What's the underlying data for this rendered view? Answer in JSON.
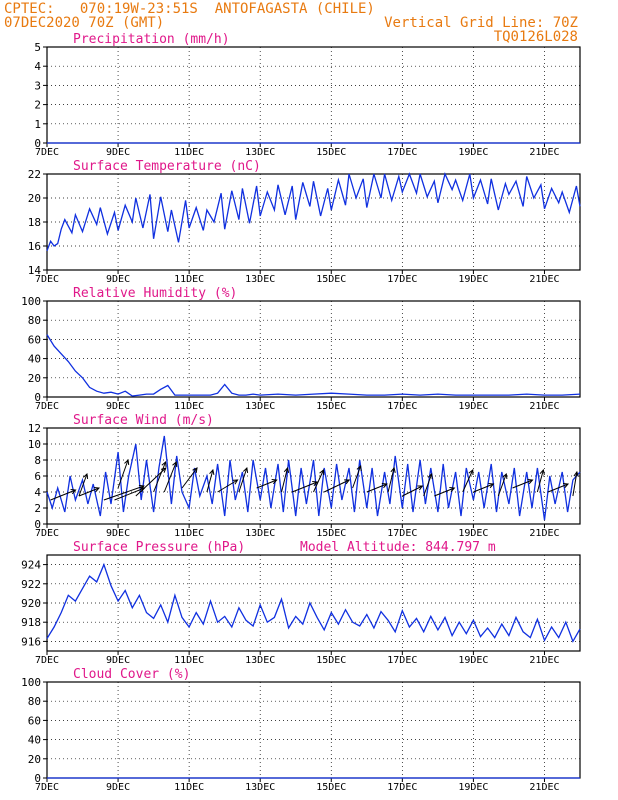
{
  "header": {
    "line1": "CPTEC:   070:19W-23:51S  ANTOFAGASTA (CHILE)",
    "line2": "07DEC2020 70Z (GMT)",
    "grid_note": "Vertical Grid Line: 70Z",
    "code": "TQ0126L028"
  },
  "colors": {
    "header": "#e87a10",
    "title": "#e0188a",
    "series": "#1030e0",
    "axis": "#000000"
  },
  "chart_data": [
    {
      "type": "line",
      "title": "Precipitation (mm/h)",
      "ylim": [
        0,
        5
      ],
      "yticks": [
        0,
        1,
        2,
        3,
        4,
        5
      ],
      "xticks": [
        "7DEC",
        "9DEC",
        "11DEC",
        "13DEC",
        "15DEC",
        "17DEC",
        "19DEC",
        "21DEC"
      ],
      "xlim_days": [
        7,
        22
      ],
      "series": [
        {
          "x": [
            7,
            22
          ],
          "y": [
            0,
            0
          ]
        }
      ]
    },
    {
      "type": "line",
      "title": "Surface Temperature (nC)",
      "ylim": [
        14,
        22
      ],
      "yticks": [
        14,
        16,
        18,
        20,
        22
      ],
      "xticks": [
        "7DEC",
        "9DEC",
        "11DEC",
        "13DEC",
        "15DEC",
        "17DEC",
        "19DEC",
        "21DEC"
      ],
      "xlim_days": [
        7,
        22
      ],
      "series": [
        {
          "x": [
            7.0,
            7.1,
            7.2,
            7.3,
            7.4,
            7.5,
            7.7,
            7.8,
            8.0,
            8.2,
            8.4,
            8.5,
            8.7,
            8.9,
            9.0,
            9.2,
            9.4,
            9.5,
            9.7,
            9.9,
            10.0,
            10.2,
            10.4,
            10.5,
            10.7,
            10.9,
            11.0,
            11.2,
            11.4,
            11.5,
            11.7,
            11.9,
            12.0,
            12.2,
            12.4,
            12.5,
            12.7,
            12.9,
            13.0,
            13.2,
            13.4,
            13.5,
            13.7,
            13.9,
            14.0,
            14.2,
            14.4,
            14.5,
            14.7,
            14.9,
            15.0,
            15.2,
            15.4,
            15.5,
            15.7,
            15.9,
            16.0,
            16.2,
            16.4,
            16.5,
            16.7,
            16.9,
            17.0,
            17.2,
            17.4,
            17.5,
            17.7,
            17.9,
            18.0,
            18.2,
            18.4,
            18.5,
            18.7,
            18.9,
            19.0,
            19.2,
            19.4,
            19.5,
            19.7,
            19.9,
            20.0,
            20.2,
            20.4,
            20.5,
            20.7,
            20.9,
            21.0,
            21.2,
            21.4,
            21.5,
            21.7,
            21.9,
            22.0
          ],
          "y": [
            15.6,
            16.4,
            16.0,
            16.2,
            17.4,
            18.2,
            17.1,
            18.6,
            17.2,
            19.1,
            17.8,
            19.2,
            17.0,
            18.8,
            17.3,
            19.4,
            18.0,
            20.0,
            17.5,
            20.3,
            16.6,
            20.1,
            17.2,
            19.0,
            16.3,
            19.8,
            17.5,
            19.2,
            17.3,
            19.0,
            18.0,
            20.4,
            17.4,
            20.6,
            18.2,
            20.8,
            17.9,
            21.0,
            18.5,
            20.5,
            19.0,
            21.1,
            18.6,
            21.0,
            18.2,
            21.3,
            19.3,
            21.4,
            18.5,
            20.8,
            19.0,
            21.5,
            19.4,
            22.0,
            20.0,
            21.6,
            19.2,
            22.0,
            20.0,
            22.0,
            19.8,
            21.8,
            20.5,
            22.0,
            20.4,
            22.0,
            20.1,
            21.4,
            19.6,
            22.0,
            20.7,
            21.5,
            19.8,
            22.0,
            20.0,
            21.5,
            19.5,
            21.6,
            19.0,
            21.2,
            20.3,
            21.4,
            19.3,
            21.8,
            20.0,
            21.1,
            19.1,
            20.8,
            19.6,
            20.5,
            18.8,
            21.0,
            19.3
          ]
        }
      ]
    },
    {
      "type": "line",
      "title": "Relative Humidity (%)",
      "ylim": [
        0,
        100
      ],
      "yticks": [
        0,
        20,
        40,
        60,
        80,
        100
      ],
      "xticks": [
        "7DEC",
        "9DEC",
        "11DEC",
        "13DEC",
        "15DEC",
        "17DEC",
        "19DEC",
        "21DEC"
      ],
      "xlim_days": [
        7,
        22
      ],
      "series": [
        {
          "x": [
            7.0,
            7.2,
            7.4,
            7.6,
            7.8,
            8.0,
            8.2,
            8.4,
            8.6,
            8.8,
            9.0,
            9.2,
            9.4,
            9.6,
            9.8,
            10.0,
            10.2,
            10.4,
            10.6,
            10.8,
            11.0,
            11.2,
            11.4,
            11.6,
            11.8,
            12.0,
            12.2,
            12.4,
            12.6,
            12.8,
            13.0,
            13.5,
            14.0,
            14.5,
            15.0,
            15.5,
            16.0,
            16.5,
            17.0,
            17.5,
            18.0,
            18.5,
            19.0,
            19.5,
            20.0,
            20.5,
            21.0,
            21.5,
            22.0
          ],
          "y": [
            65,
            53,
            45,
            37,
            27,
            20,
            10,
            6,
            4,
            5,
            3,
            6,
            1,
            2,
            3,
            3,
            8,
            12,
            2,
            2,
            2,
            2,
            2,
            2,
            4,
            13,
            4,
            2,
            2,
            3,
            2,
            3,
            2,
            3,
            4,
            3,
            2,
            2,
            3,
            2,
            3,
            2,
            2,
            2,
            2,
            3,
            2,
            2,
            3
          ]
        }
      ]
    },
    {
      "type": "line",
      "title": "Surface Wind (m/s)",
      "ylim": [
        0,
        12
      ],
      "yticks": [
        0,
        2,
        4,
        6,
        8,
        10,
        12
      ],
      "xticks": [
        "7DEC",
        "9DEC",
        "11DEC",
        "13DEC",
        "15DEC",
        "17DEC",
        "19DEC",
        "21DEC"
      ],
      "xlim_days": [
        7,
        22
      ],
      "series": [
        {
          "x": [
            7.0,
            7.15,
            7.3,
            7.5,
            7.65,
            7.8,
            8.0,
            8.15,
            8.3,
            8.5,
            8.65,
            8.8,
            9.0,
            9.15,
            9.3,
            9.5,
            9.65,
            9.8,
            10.0,
            10.15,
            10.3,
            10.5,
            10.65,
            10.8,
            11.0,
            11.15,
            11.3,
            11.5,
            11.65,
            11.8,
            12.0,
            12.15,
            12.3,
            12.5,
            12.65,
            12.8,
            13.0,
            13.15,
            13.3,
            13.5,
            13.65,
            13.8,
            14.0,
            14.15,
            14.3,
            14.5,
            14.65,
            14.8,
            15.0,
            15.15,
            15.3,
            15.5,
            15.65,
            15.8,
            16.0,
            16.15,
            16.3,
            16.5,
            16.65,
            16.8,
            17.0,
            17.15,
            17.3,
            17.5,
            17.65,
            17.8,
            18.0,
            18.15,
            18.3,
            18.5,
            18.65,
            18.8,
            19.0,
            19.15,
            19.3,
            19.5,
            19.65,
            19.8,
            20.0,
            20.15,
            20.3,
            20.5,
            20.65,
            20.8,
            21.0,
            21.15,
            21.3,
            21.5,
            21.65,
            21.8,
            22.0
          ],
          "y": [
            4.0,
            2.0,
            4.5,
            1.5,
            6.0,
            3.0,
            5.5,
            2.5,
            5.0,
            1.0,
            6.5,
            2.5,
            9.0,
            1.5,
            6.0,
            10.0,
            3.0,
            8.0,
            1.5,
            7.0,
            11.0,
            2.5,
            8.5,
            4.0,
            2.0,
            7.0,
            3.5,
            6.0,
            2.5,
            7.5,
            1.0,
            8.0,
            3.0,
            6.5,
            1.5,
            8.0,
            3.0,
            7.0,
            2.0,
            7.5,
            1.5,
            8.0,
            1.0,
            7.0,
            2.5,
            8.0,
            1.0,
            7.0,
            2.0,
            7.5,
            3.0,
            7.0,
            1.5,
            8.0,
            2.0,
            7.0,
            1.0,
            6.5,
            2.5,
            8.5,
            2.0,
            7.5,
            1.5,
            8.0,
            2.5,
            7.0,
            1.5,
            7.5,
            2.0,
            6.5,
            1.0,
            7.0,
            3.0,
            6.5,
            2.0,
            7.5,
            1.5,
            6.5,
            2.5,
            7.0,
            1.0,
            6.5,
            2.0,
            7.0,
            0.5,
            6.0,
            2.5,
            6.5,
            1.5,
            5.5,
            6.5
          ]
        }
      ],
      "wind_barbs": [
        {
          "x": 7.1,
          "dx": 25,
          "dy": -10
        },
        {
          "x": 7.9,
          "dx": 8,
          "dy": -22
        },
        {
          "x": 7.9,
          "dx": 20,
          "dy": -8
        },
        {
          "x": 8.6,
          "dx": 40,
          "dy": -14
        },
        {
          "x": 9.0,
          "dx": 10,
          "dy": -28
        },
        {
          "x": 8.9,
          "dx": 30,
          "dy": -12
        },
        {
          "x": 9.5,
          "dx": 30,
          "dy": -28
        },
        {
          "x": 10.0,
          "dx": 12,
          "dy": -30
        },
        {
          "x": 10.3,
          "dx": 12,
          "dy": -30
        },
        {
          "x": 10.8,
          "dx": 15,
          "dy": -20
        },
        {
          "x": 11.5,
          "dx": 6,
          "dy": -22
        },
        {
          "x": 11.8,
          "dx": 20,
          "dy": -12
        },
        {
          "x": 12.4,
          "dx": 8,
          "dy": -24
        },
        {
          "x": 12.9,
          "dx": 20,
          "dy": -8
        },
        {
          "x": 13.6,
          "dx": 6,
          "dy": -24
        },
        {
          "x": 13.9,
          "dx": 25,
          "dy": -10
        },
        {
          "x": 14.5,
          "dx": 10,
          "dy": -22
        },
        {
          "x": 14.8,
          "dx": 25,
          "dy": -12
        },
        {
          "x": 15.6,
          "dx": 8,
          "dy": -22
        },
        {
          "x": 16.0,
          "dx": 20,
          "dy": -8
        },
        {
          "x": 16.6,
          "dx": 6,
          "dy": -24
        },
        {
          "x": 17.0,
          "dx": 20,
          "dy": -10
        },
        {
          "x": 17.6,
          "dx": 8,
          "dy": -22
        },
        {
          "x": 17.9,
          "dx": 20,
          "dy": -8
        },
        {
          "x": 18.7,
          "dx": 10,
          "dy": -22
        },
        {
          "x": 19.0,
          "dx": 20,
          "dy": -8
        },
        {
          "x": 19.7,
          "dx": 8,
          "dy": -22
        },
        {
          "x": 20.1,
          "dx": 20,
          "dy": -8
        },
        {
          "x": 20.8,
          "dx": 6,
          "dy": -22
        },
        {
          "x": 21.1,
          "dx": 20,
          "dy": -8
        },
        {
          "x": 21.8,
          "dx": 4,
          "dy": -24
        }
      ]
    },
    {
      "type": "line",
      "title": "Surface Pressure (hPa)",
      "annotation": "Model Altitude: 844.797 m",
      "ylim": [
        915,
        925
      ],
      "yticks": [
        916,
        918,
        920,
        922,
        924
      ],
      "xticks": [
        "7DEC",
        "9DEC",
        "11DEC",
        "13DEC",
        "15DEC",
        "17DEC",
        "19DEC",
        "21DEC"
      ],
      "xlim_days": [
        7,
        22
      ],
      "series": [
        {
          "x": [
            7.0,
            7.2,
            7.4,
            7.6,
            7.8,
            8.0,
            8.2,
            8.4,
            8.6,
            8.8,
            9.0,
            9.2,
            9.4,
            9.6,
            9.8,
            10.0,
            10.2,
            10.4,
            10.6,
            10.8,
            11.0,
            11.2,
            11.4,
            11.6,
            11.8,
            12.0,
            12.2,
            12.4,
            12.6,
            12.8,
            13.0,
            13.2,
            13.4,
            13.6,
            13.8,
            14.0,
            14.2,
            14.4,
            14.6,
            14.8,
            15.0,
            15.2,
            15.4,
            15.6,
            15.8,
            16.0,
            16.2,
            16.4,
            16.6,
            16.8,
            17.0,
            17.2,
            17.4,
            17.6,
            17.8,
            18.0,
            18.2,
            18.4,
            18.6,
            18.8,
            19.0,
            19.2,
            19.4,
            19.6,
            19.8,
            20.0,
            20.2,
            20.4,
            20.6,
            20.8,
            21.0,
            21.2,
            21.4,
            21.6,
            21.8,
            22.0
          ],
          "y": [
            916.3,
            917.5,
            919.0,
            920.8,
            920.2,
            921.5,
            922.8,
            922.2,
            924.0,
            921.8,
            920.2,
            921.3,
            919.5,
            920.8,
            919.0,
            918.4,
            919.8,
            918.0,
            920.8,
            918.5,
            917.5,
            919.0,
            917.8,
            920.2,
            918.0,
            918.6,
            917.5,
            919.5,
            918.2,
            917.6,
            919.8,
            918.0,
            918.5,
            920.4,
            917.4,
            918.6,
            917.8,
            920.0,
            918.5,
            917.2,
            919.0,
            917.8,
            919.3,
            918.0,
            917.6,
            918.8,
            917.4,
            919.1,
            918.2,
            917.0,
            919.2,
            917.5,
            918.4,
            917.0,
            918.6,
            917.2,
            918.5,
            916.6,
            918.0,
            916.8,
            918.2,
            916.5,
            917.4,
            916.4,
            917.8,
            916.6,
            918.5,
            917.0,
            916.4,
            918.3,
            916.1,
            917.5,
            916.4,
            918.0,
            916.0,
            917.3
          ]
        }
      ]
    },
    {
      "type": "line",
      "title": "Cloud Cover (%)",
      "ylim": [
        0,
        100
      ],
      "yticks": [
        0,
        20,
        40,
        60,
        80,
        100
      ],
      "xticks": [
        "7DEC",
        "9DEC",
        "11DEC",
        "13DEC",
        "15DEC",
        "17DEC",
        "19DEC",
        "21DEC"
      ],
      "xlim_days": [
        7,
        22
      ],
      "series": [
        {
          "x": [
            7,
            22
          ],
          "y": [
            0,
            0
          ]
        }
      ]
    }
  ]
}
